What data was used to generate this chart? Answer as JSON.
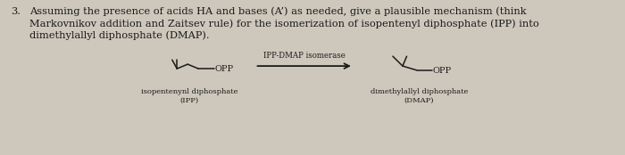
{
  "background_color": "#cec8bc",
  "text_color": "#1a1a1a",
  "question_number": "3.",
  "question_text": "Assuming the presence of acids HA and bases (A’) as needed, give a plausible mechanism (think\nMarkovnikov addition and Zaitsev rule) for the isomerization of isopentenyl diphosphate (IPP) into\ndimethylallyl diphosphate (DMAP).",
  "enzyme_label": "IPP-DMAP isomerase",
  "ipp_label_line1": "isopentenynl diphosphate",
  "ipp_label_line2": "(IPP)",
  "dmap_label_line1": "dimethylallyl diphosphate",
  "dmap_label_line2": "(DMAP)",
  "opp_label": "OPP",
  "fontsize_question": 8.2,
  "fontsize_labels": 6.0,
  "fontsize_enzyme": 6.2,
  "fontsize_opp": 7.0
}
